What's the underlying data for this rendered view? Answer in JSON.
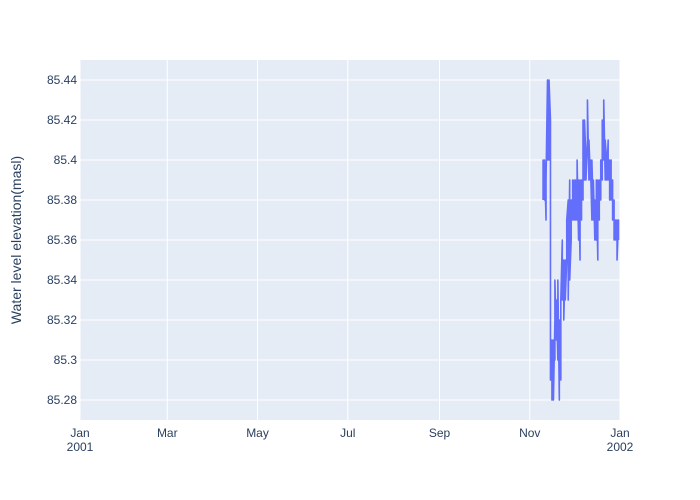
{
  "chart_data": {
    "type": "line",
    "title": "",
    "xlabel": "",
    "ylabel": "Water level elevation(masl)",
    "x_axis_type": "date",
    "xlim": [
      "2001-01-01",
      "2002-01-01"
    ],
    "ylim": [
      85.27,
      85.45
    ],
    "x_ticks": [
      {
        "date": "2001-01-01",
        "label": "Jan",
        "sublabel": "2001"
      },
      {
        "date": "2001-03-01",
        "label": "Mar",
        "sublabel": ""
      },
      {
        "date": "2001-05-01",
        "label": "May",
        "sublabel": ""
      },
      {
        "date": "2001-07-01",
        "label": "Jul",
        "sublabel": ""
      },
      {
        "date": "2001-09-01",
        "label": "Sep",
        "sublabel": ""
      },
      {
        "date": "2001-11-01",
        "label": "Nov",
        "sublabel": ""
      },
      {
        "date": "2002-01-01",
        "label": "Jan",
        "sublabel": "2002"
      }
    ],
    "y_ticks": [
      {
        "value": 85.28,
        "label": "85.28"
      },
      {
        "value": 85.3,
        "label": "85.3"
      },
      {
        "value": 85.32,
        "label": "85.32"
      },
      {
        "value": 85.34,
        "label": "85.34"
      },
      {
        "value": 85.36,
        "label": "85.36"
      },
      {
        "value": 85.38,
        "label": "85.38"
      },
      {
        "value": 85.4,
        "label": "85.4"
      },
      {
        "value": 85.42,
        "label": "85.42"
      },
      {
        "value": 85.44,
        "label": "85.44"
      }
    ],
    "grid": true,
    "legend": "none",
    "colors": {
      "plot_bg": "#e5ecf6",
      "grid": "#ffffff",
      "line": "#636efa",
      "text": "#2a3f5f"
    },
    "series": [
      {
        "name": "",
        "x": [
          "2001-11-10",
          "2001-11-10",
          "2001-11-11",
          "2001-11-11",
          "2001-11-12",
          "2001-11-12",
          "2001-11-13",
          "2001-11-13",
          "2001-11-13",
          "2001-11-14",
          "2001-11-14",
          "2001-11-15",
          "2001-11-15",
          "2001-11-16",
          "2001-11-16",
          "2001-11-17",
          "2001-11-17",
          "2001-11-18",
          "2001-11-18",
          "2001-11-18",
          "2001-11-19",
          "2001-11-19",
          "2001-11-20",
          "2001-11-20",
          "2001-11-21",
          "2001-11-21",
          "2001-11-22",
          "2001-11-22",
          "2001-11-23",
          "2001-11-23",
          "2001-11-24",
          "2001-11-24",
          "2001-11-25",
          "2001-11-25",
          "2001-11-26",
          "2001-11-26",
          "2001-11-27",
          "2001-11-27",
          "2001-11-28",
          "2001-11-28",
          "2001-11-29",
          "2001-11-29",
          "2001-11-30",
          "2001-11-30",
          "2001-12-01",
          "2001-12-01",
          "2001-12-02",
          "2001-12-02",
          "2001-12-03",
          "2001-12-03",
          "2001-12-04",
          "2001-12-04",
          "2001-12-05",
          "2001-12-05",
          "2001-12-06",
          "2001-12-06",
          "2001-12-07",
          "2001-12-07",
          "2001-12-08",
          "2001-12-08",
          "2001-12-09",
          "2001-12-09",
          "2001-12-10",
          "2001-12-10",
          "2001-12-11",
          "2001-12-11",
          "2001-12-12",
          "2001-12-12",
          "2001-12-13",
          "2001-12-13",
          "2001-12-14",
          "2001-12-14",
          "2001-12-15",
          "2001-12-15",
          "2001-12-16",
          "2001-12-16",
          "2001-12-17",
          "2001-12-17",
          "2001-12-18",
          "2001-12-18",
          "2001-12-19",
          "2001-12-19",
          "2001-12-20",
          "2001-12-20",
          "2001-12-21",
          "2001-12-21",
          "2001-12-22",
          "2001-12-22",
          "2001-12-23",
          "2001-12-23",
          "2001-12-24",
          "2001-12-24",
          "2001-12-25",
          "2001-12-25",
          "2001-12-26",
          "2001-12-26",
          "2001-12-27",
          "2001-12-27",
          "2001-12-28",
          "2001-12-28",
          "2001-12-29",
          "2001-12-29",
          "2001-12-30",
          "2001-12-30",
          "2001-12-31",
          "2001-12-31"
        ],
        "y": [
          85.38,
          85.4,
          85.38,
          85.4,
          85.37,
          85.39,
          85.44,
          85.4,
          85.42,
          85.4,
          85.44,
          85.42,
          85.29,
          85.31,
          85.28,
          85.31,
          85.28,
          85.32,
          85.3,
          85.34,
          85.31,
          85.33,
          85.3,
          85.34,
          85.28,
          85.32,
          85.29,
          85.33,
          85.36,
          85.33,
          85.35,
          85.32,
          85.35,
          85.33,
          85.35,
          85.37,
          85.38,
          85.33,
          85.39,
          85.34,
          85.36,
          85.38,
          85.37,
          85.39,
          85.37,
          85.39,
          85.37,
          85.39,
          85.37,
          85.4,
          85.36,
          85.39,
          85.35,
          85.39,
          85.37,
          85.39,
          85.38,
          85.42,
          85.39,
          85.42,
          85.4,
          85.39,
          85.41,
          85.43,
          85.39,
          85.41,
          85.39,
          85.4,
          85.37,
          85.4,
          85.37,
          85.39,
          85.36,
          85.38,
          85.36,
          85.39,
          85.35,
          85.39,
          85.37,
          85.39,
          85.38,
          85.4,
          85.39,
          85.42,
          85.4,
          85.43,
          85.39,
          85.41,
          85.4,
          85.39,
          85.41,
          85.39,
          85.4,
          85.38,
          85.4,
          85.38,
          85.39,
          85.37,
          85.38,
          85.36,
          85.37,
          85.36,
          85.37,
          85.35,
          85.37,
          85.36
        ]
      }
    ]
  }
}
